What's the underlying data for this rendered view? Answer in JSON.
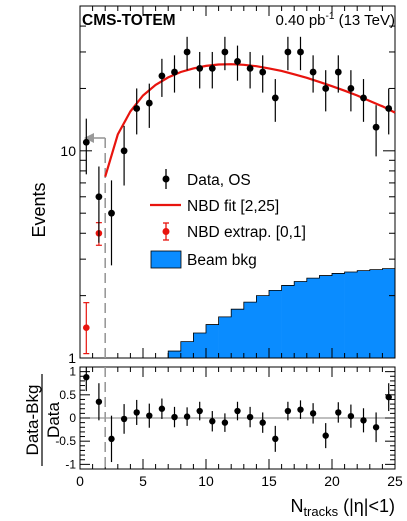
{
  "chart_data": [
    {
      "type": "scatter",
      "experiment": "CMS-TOTEM",
      "luminosity": "0.40 pb",
      "luminosity_exponent": "-1",
      "energy": "(13 TeV)",
      "ylabel": "Events",
      "yscale": "log",
      "ylim": [
        1,
        50
      ],
      "xlim": [
        0,
        25
      ],
      "y_tick_labels": [
        {
          "value": 1,
          "label": "1"
        },
        {
          "value": 10,
          "label": "10"
        }
      ],
      "legend_position": "center",
      "legend": {
        "data": "Data, OS",
        "fit": "NBD fit [2,25]",
        "extrap": "NBD extrap. [0,1]",
        "bkg": "Beam bkg"
      },
      "series": [
        {
          "name": "Data, OS",
          "color": "#000000",
          "x": [
            0.5,
            1.5,
            2.5,
            3.5,
            4.5,
            5.5,
            6.5,
            7.5,
            8.5,
            9.5,
            10.5,
            11.5,
            12.5,
            13.5,
            14.5,
            15.5,
            16.5,
            17.5,
            18.5,
            19.5,
            20.5,
            21.5,
            22.5,
            23.5,
            24.5
          ],
          "y": [
            11,
            6,
            5,
            10,
            16,
            17,
            23,
            24,
            30,
            25,
            25,
            30,
            27,
            25,
            24,
            18,
            30,
            30,
            24,
            20,
            24,
            20,
            18,
            13,
            16
          ],
          "yerr": [
            3.3,
            2.4,
            2.2,
            3.2,
            4,
            4.1,
            4.8,
            4.9,
            5.5,
            5,
            5,
            5.5,
            5.2,
            5,
            4.9,
            4.2,
            5.5,
            5.5,
            4.9,
            4.5,
            4.9,
            4.5,
            4.2,
            3.6,
            4
          ]
        },
        {
          "name": "NBD fit [2,25]",
          "color": "#e8140e",
          "x": [
            2,
            3,
            4,
            5,
            6,
            7,
            8,
            9,
            10,
            11,
            12,
            13,
            14,
            15,
            16,
            17,
            18,
            19,
            20,
            21,
            22,
            23,
            24,
            25
          ],
          "y": [
            7.5,
            12,
            15.5,
            18.5,
            20.8,
            22.6,
            24,
            25,
            25.7,
            26.1,
            26.2,
            26,
            25.6,
            25,
            24.3,
            23.4,
            22.5,
            21.5,
            20.5,
            19.5,
            18.5,
            17.4,
            16.4,
            15.3
          ]
        },
        {
          "name": "NBD extrap. [0,1]",
          "color": "#e8140e",
          "x": [
            0.5,
            1.5
          ],
          "y": [
            1.4,
            4.0
          ],
          "yerr_low": [
            0.35,
            0.5
          ],
          "yerr_high": [
            0.45,
            0.5
          ]
        },
        {
          "name": "Beam bkg",
          "color": "#0a8cff",
          "type": "histogram",
          "bin_edges": [
            0,
            1,
            2,
            3,
            4,
            5,
            6,
            7,
            8,
            9,
            10,
            11,
            12,
            13,
            14,
            15,
            16,
            17,
            18,
            19,
            20,
            21,
            22,
            23,
            24,
            25
          ],
          "values": [
            0,
            0,
            0,
            0,
            0,
            0,
            0,
            1.08,
            1.2,
            1.32,
            1.45,
            1.58,
            1.72,
            1.86,
            2.0,
            2.12,
            2.24,
            2.34,
            2.43,
            2.5,
            2.56,
            2.6,
            2.64,
            2.67,
            2.7
          ]
        }
      ],
      "cut": {
        "x": 2,
        "arrow": "left"
      }
    },
    {
      "type": "scatter",
      "ylabel_num": "Data-Bkg",
      "ylabel_den": "Data",
      "xlabel_main": "N",
      "xlabel_sub": "tracks",
      "xlabel_rest": "(|η|<1)",
      "xlim": [
        0,
        25
      ],
      "ylim": [
        -1.1,
        1.1
      ],
      "x_tick_labels": [
        "0",
        "5",
        "10",
        "15",
        "20",
        "25"
      ],
      "y_tick_labels": [
        {
          "value": 1,
          "label": "1"
        },
        {
          "value": 0.5,
          "label": "0.5"
        },
        {
          "value": 0,
          "label": "0"
        },
        {
          "value": -0.5,
          "label": "-0.5"
        },
        {
          "value": -1,
          "label": "-1"
        }
      ],
      "series": [
        {
          "name": "Data",
          "color": "#000000",
          "x": [
            0.5,
            1.5,
            2.5,
            3.5,
            4.5,
            5.5,
            6.5,
            7.5,
            8.5,
            9.5,
            10.5,
            11.5,
            12.5,
            13.5,
            14.5,
            15.5,
            16.5,
            17.5,
            18.5,
            19.5,
            20.5,
            21.5,
            22.5,
            23.5,
            24.5
          ],
          "y": [
            0.88,
            0.35,
            -0.45,
            -0.02,
            0.12,
            0.05,
            0.2,
            0.02,
            0.03,
            0.15,
            -0.07,
            -0.1,
            0.15,
            0.02,
            -0.1,
            -0.45,
            0.15,
            0.18,
            0.1,
            -0.38,
            0.12,
            0.04,
            -0.05,
            -0.2,
            0.45
          ],
          "yerr": [
            0.3,
            0.4,
            0.5,
            0.32,
            0.27,
            0.26,
            0.22,
            0.22,
            0.2,
            0.2,
            0.22,
            0.2,
            0.2,
            0.22,
            0.22,
            0.28,
            0.2,
            0.2,
            0.22,
            0.27,
            0.22,
            0.25,
            0.26,
            0.32,
            0.3
          ]
        }
      ],
      "cut": {
        "x": 2
      }
    }
  ]
}
